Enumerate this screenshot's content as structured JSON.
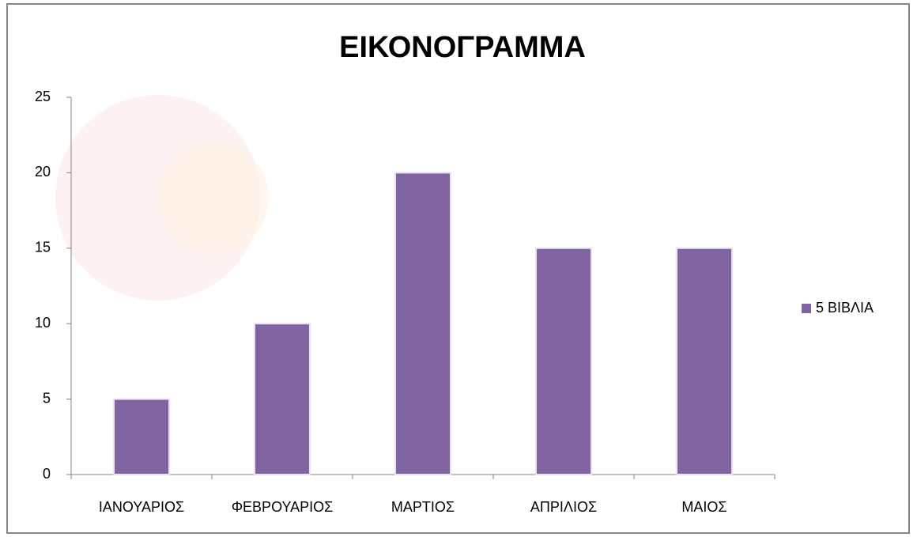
{
  "chart_data": {
    "type": "bar",
    "title": "ΕΙΚΟΝΟΓΡΑΜΜΑ",
    "categories": [
      "ΙΑΝΟΥΑΡΙΟΣ",
      "ΦΕΒΡΟΥΑΡΙΟΣ",
      "ΜΑΡΤΙΟΣ",
      "ΑΠΡΙΛΙΟΣ",
      "ΜΑΙΟΣ"
    ],
    "series": [
      {
        "name": "5 ΒΙΒΛΙΑ",
        "color": "#8064a2",
        "values": [
          5,
          10,
          20,
          15,
          15
        ]
      }
    ],
    "ylim": [
      0,
      25
    ],
    "yticks": [
      0,
      5,
      10,
      15,
      20,
      25
    ],
    "legend": "right"
  }
}
